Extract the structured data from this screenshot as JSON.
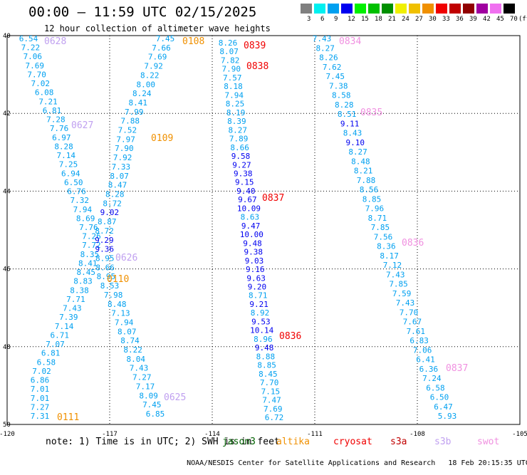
{
  "title": "00:00 – 11:59 UTC 02/15/2025",
  "subtitle": "12 hour collection of altimeter wave heights",
  "color_scale": {
    "unit": "(ft)",
    "bins": [
      {
        "label": "3",
        "color": "#808080"
      },
      {
        "label": "6",
        "color": "#00f0f0"
      },
      {
        "label": "9",
        "color": "#00a0f0"
      },
      {
        "label": "12",
        "color": "#0000f0"
      },
      {
        "label": "15",
        "color": "#00f000"
      },
      {
        "label": "18",
        "color": "#00c000"
      },
      {
        "label": "21",
        "color": "#009000"
      },
      {
        "label": "24",
        "color": "#f0f000"
      },
      {
        "label": "27",
        "color": "#f0c000"
      },
      {
        "label": "30",
        "color": "#f09000"
      },
      {
        "label": "33",
        "color": "#f00000"
      },
      {
        "label": "36",
        "color": "#c00000"
      },
      {
        "label": "39",
        "color": "#900000"
      },
      {
        "label": "42",
        "color": "#a000a0"
      },
      {
        "label": "45",
        "color": "#f070f0"
      },
      {
        "label": "70",
        "color": "#000000"
      }
    ]
  },
  "map": {
    "lon_ticks": [
      "-120",
      "-117",
      "-114",
      "-111",
      "-108",
      "-105"
    ],
    "lat_ticks": [
      "40",
      "42",
      "44",
      "46",
      "48",
      "50"
    ],
    "satellite_colors": {
      "jason3": "#006000",
      "altika": "#f09000",
      "cryosat": "#f00000",
      "s3a": "#c00000",
      "s3b": "#c0a0f0",
      "swot": "#f090e0"
    },
    "height_colors": {
      "low": "#00a0f0",
      "mid": "#0000f0"
    },
    "tracks": [
      {
        "id": "A",
        "values": [
          "6.54",
          "7.22",
          "7.06",
          "7.69",
          "7.70",
          "7.02",
          "6.08",
          "7.21",
          "6.81",
          "7.28",
          "7.76",
          "6.97",
          "8.28",
          "7.14",
          "7.25",
          "6.94",
          "6.50",
          "6.76",
          "7.32",
          "7.94",
          "8.69",
          "7.76",
          "7.26",
          "7.72",
          "8.35",
          "8.41",
          "8.45",
          "8.83",
          "8.38",
          "7.71",
          "7.43",
          "7.39",
          "7.14",
          "6.71",
          "7.07",
          "6.81",
          "6.58",
          "7.02",
          "6.86",
          "7.01",
          "7.01",
          "7.27",
          "7.31"
        ]
      },
      {
        "id": "B",
        "values": [
          "7.45",
          "7.66",
          "7.69",
          "7.92",
          "8.22",
          "8.00",
          "8.24",
          "8.41",
          "7.99",
          "7.88",
          "7.52",
          "7.97",
          "7.90",
          "7.92",
          "7.33",
          "8.07",
          "8.47",
          "8.28",
          "8.72",
          "9.02",
          "8.87",
          "8.72",
          "9.29",
          "9.36",
          "8.95",
          "8.66",
          "8.95",
          "8.53",
          "7.98",
          "8.48",
          "7.13",
          "7.94",
          "8.07",
          "8.74",
          "8.22",
          "8.04",
          "7.43",
          "7.27",
          "7.17",
          "8.09",
          "7.45",
          "6.85"
        ]
      },
      {
        "id": "C",
        "values": [
          "8.26",
          "8.07",
          "7.82",
          "7.90",
          "7.57",
          "8.18",
          "7.94",
          "8.25",
          "8.19",
          "8.39",
          "8.27",
          "7.89",
          "8.66",
          "9.58",
          "9.27",
          "9.38",
          "9.15",
          "9.40",
          "9.67",
          "10.09",
          "8.63",
          "9.47",
          "10.00",
          "9.48",
          "9.38",
          "9.03",
          "9.16",
          "9.63",
          "9.20",
          "8.71",
          "9.21",
          "8.92",
          "9.53",
          "10.14",
          "8.96",
          "9.48",
          "8.88",
          "8.85",
          "8.45",
          "7.70",
          "7.15",
          "7.47",
          "7.69",
          "6.72"
        ]
      },
      {
        "id": "D",
        "values": [
          "7.43",
          "8.27",
          "8.26",
          "7.62",
          "7.45",
          "7.38",
          "8.58",
          "8.28",
          "8.51",
          "9.11",
          "8.43",
          "9.10",
          "8.27",
          "8.48",
          "8.21",
          "7.88",
          "8.56",
          "8.85",
          "7.96",
          "8.71",
          "7.85",
          "7.56",
          "8.36",
          "8.17",
          "7.12",
          "7.43",
          "7.85",
          "7.59",
          "7.43",
          "7.70",
          "7.67",
          "7.61",
          "6.83",
          "7.06",
          "6.41",
          "6.36",
          "7.24",
          "6.58",
          "6.50",
          "6.47",
          "5.93"
        ]
      }
    ],
    "time_labels": [
      {
        "text": "0628",
        "sat": "s3b"
      },
      {
        "text": "0627",
        "sat": "s3b"
      },
      {
        "text": "0626",
        "sat": "s3b"
      },
      {
        "text": "0625",
        "sat": "s3b"
      },
      {
        "text": "0108",
        "sat": "altika"
      },
      {
        "text": "0109",
        "sat": "altika"
      },
      {
        "text": "0110",
        "sat": "altika"
      },
      {
        "text": "0111",
        "sat": "altika"
      },
      {
        "text": "0839",
        "sat": "cryosat"
      },
      {
        "text": "0838",
        "sat": "cryosat"
      },
      {
        "text": "0837",
        "sat": "cryosat"
      },
      {
        "text": "0836",
        "sat": "cryosat"
      },
      {
        "text": "0834",
        "sat": "swot"
      },
      {
        "text": "0835",
        "sat": "swot"
      },
      {
        "text": "0836",
        "sat": "swot"
      },
      {
        "text": "0837",
        "sat": "swot"
      }
    ]
  },
  "footer": {
    "note": "note: 1) Time is in UTC; 2) SWH is in feet",
    "satellites": [
      {
        "name": "jason3",
        "color": "#006000"
      },
      {
        "name": "altika",
        "color": "#f09000"
      },
      {
        "name": "cryosat",
        "color": "#f00000"
      },
      {
        "name": "s3a",
        "color": "#c00000"
      },
      {
        "name": "s3b",
        "color": "#c0a0f0"
      },
      {
        "name": "swot",
        "color": "#f090e0"
      }
    ],
    "credit": "NOAA/NESDIS Center for Satellite Applications and Research",
    "timestamp": "18 Feb 20:15:35 UTC 2025"
  }
}
